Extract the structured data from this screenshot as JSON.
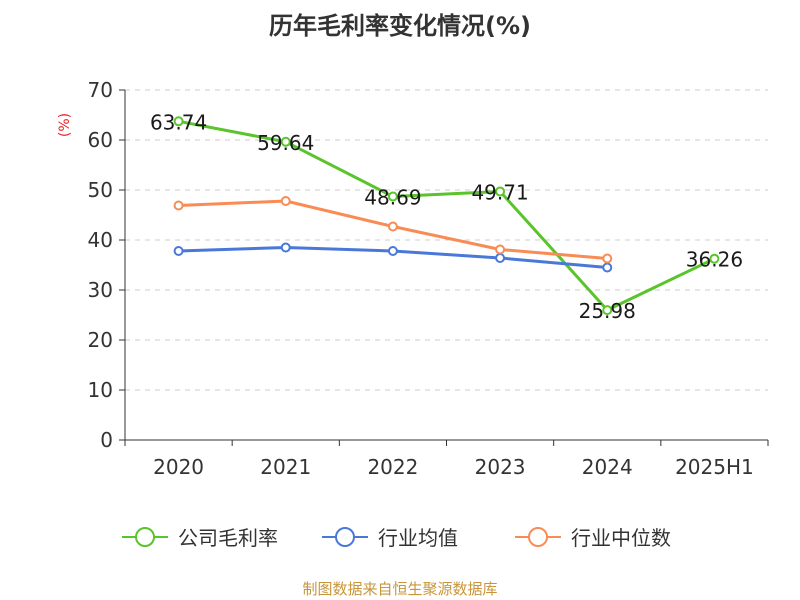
{
  "colors": {
    "axis": "#333333",
    "grid": "#cccccc",
    "unit": "#e8262a",
    "source": "#c8953a"
  },
  "chart_data": {
    "type": "line",
    "title": "历年毛利率变化情况(%)",
    "ylabel": "(%)",
    "xlabel": "",
    "categories": [
      "2020",
      "2021",
      "2022",
      "2023",
      "2024",
      "2025H1"
    ],
    "ylim": [
      0,
      70
    ],
    "yticks": [
      0,
      10,
      20,
      30,
      40,
      50,
      60,
      70
    ],
    "grid": true,
    "legend_position": "bottom",
    "series": [
      {
        "name": "公司毛利率",
        "color": "#5ac42b",
        "values": [
          63.74,
          59.64,
          48.69,
          49.71,
          25.98,
          36.26
        ],
        "labels": [
          "63.74",
          "59.64",
          "48.69",
          "49.71",
          "25.98",
          "36.26"
        ]
      },
      {
        "name": "行业均值",
        "color": "#4a78d9",
        "values": [
          37.8,
          38.5,
          37.8,
          36.4,
          34.5,
          null
        ]
      },
      {
        "name": "行业中位数",
        "color": "#f98b55",
        "values": [
          46.9,
          47.8,
          42.7,
          38.1,
          36.3,
          null
        ]
      }
    ]
  },
  "source": "制图数据来自恒生聚源数据库"
}
